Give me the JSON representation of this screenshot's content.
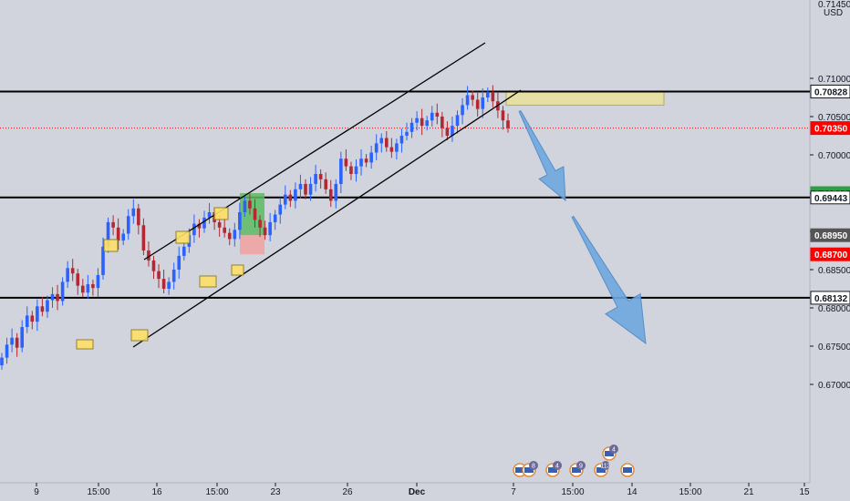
{
  "price_axis": {
    "currency": "USD",
    "ticks": [
      "0.71000",
      "0.70500",
      "0.70000",
      "0.69500",
      "0.69000",
      "0.68500",
      "0.68000",
      "0.67500",
      "0.67000"
    ],
    "top_partial": "0.71450"
  },
  "time_axis": {
    "ticks": [
      {
        "label": "9",
        "bold": false
      },
      {
        "label": "15:00",
        "bold": false
      },
      {
        "label": "16",
        "bold": false
      },
      {
        "label": "15:00",
        "bold": false
      },
      {
        "label": "23",
        "bold": false
      },
      {
        "label": "26",
        "bold": false
      },
      {
        "label": "Dec",
        "bold": true
      },
      {
        "label": "7",
        "bold": false
      },
      {
        "label": "15:00",
        "bold": false
      },
      {
        "label": "14",
        "bold": false
      },
      {
        "label": "15:00",
        "bold": false
      },
      {
        "label": "21",
        "bold": false
      },
      {
        "label": "15",
        "bold": false
      }
    ]
  },
  "price_tags": [
    {
      "value": "0.70828",
      "bg": "#ffffff",
      "fg": "#131722"
    },
    {
      "value": "0.70350",
      "bg": "#ff0000",
      "fg": "#ffffff"
    },
    {
      "value": "0.69500",
      "bg": "#2f9e44",
      "fg": "#ffffff"
    },
    {
      "value": "0.69443",
      "bg": "#ffffff",
      "fg": "#131722"
    },
    {
      "value": "0.68950",
      "bg": "#555555",
      "fg": "#ffffff"
    },
    {
      "value": "0.68700",
      "bg": "#ff0000",
      "fg": "#ffffff"
    },
    {
      "value": "0.68132",
      "bg": "#ffffff",
      "fg": "#131722"
    }
  ],
  "event_badges": [
    "",
    "8",
    "4",
    "9",
    "113",
    "",
    "4"
  ],
  "colors": {
    "background": "#d1d4dc",
    "bull": "#2962ff",
    "bear": "#b22833",
    "lines": "#000000",
    "current_price_line": "#ff0000",
    "supply_zone": "#e8e0a0",
    "arrow": "#6fa8e0",
    "highlight_box": "#ffe066",
    "target_box": "#5dbb63",
    "stop_box": "#f2a0a0"
  },
  "chart_data": {
    "type": "candlestick",
    "symbol_quote": "USD",
    "ylim": [
      0.6695,
      0.7145
    ],
    "x_ticks": [
      "9",
      "15:00",
      "16",
      "15:00",
      "23",
      "26",
      "Dec",
      "7",
      "15:00",
      "14",
      "15:00",
      "21",
      "15"
    ],
    "horizontal_levels": [
      0.70828,
      0.69443,
      0.68132
    ],
    "current_price": 0.7035,
    "position": {
      "entry": 0.6895,
      "target": 0.695,
      "stop": 0.687
    },
    "supply_zone": [
      0.7065,
      0.70828
    ],
    "channel": {
      "upper": [
        [
          0.6897,
          0.7112
        ]
      ],
      "lower": [
        [
          0.6812,
          0.7065
        ]
      ]
    },
    "candles_close": [
      0.6735,
      0.6752,
      0.6761,
      0.6748,
      0.6775,
      0.679,
      0.6782,
      0.6802,
      0.6795,
      0.681,
      0.6818,
      0.6809,
      0.6834,
      0.6852,
      0.6845,
      0.6829,
      0.682,
      0.6831,
      0.6826,
      0.6843,
      0.688,
      0.6912,
      0.6905,
      0.6888,
      0.6897,
      0.692,
      0.693,
      0.6908,
      0.6875,
      0.6862,
      0.6848,
      0.6838,
      0.6825,
      0.6834,
      0.685,
      0.6868,
      0.688,
      0.6895,
      0.691,
      0.6904,
      0.6918,
      0.6925,
      0.6912,
      0.6905,
      0.6898,
      0.689,
      0.6902,
      0.6925,
      0.694,
      0.693,
      0.6915,
      0.6905,
      0.6895,
      0.6912,
      0.6922,
      0.6935,
      0.6948,
      0.694,
      0.6955,
      0.6962,
      0.6948,
      0.6962,
      0.6975,
      0.6968,
      0.6955,
      0.694,
      0.6962,
      0.6995,
      0.6985,
      0.6975,
      0.6985,
      0.6995,
      0.699,
      0.7003,
      0.7015,
      0.7022,
      0.701,
      0.7004,
      0.7015,
      0.7025,
      0.703,
      0.7042,
      0.7048,
      0.7038,
      0.7045,
      0.7055,
      0.705,
      0.7035,
      0.7025,
      0.7038,
      0.7052,
      0.7065,
      0.7078,
      0.7072,
      0.706,
      0.7075,
      0.7082,
      0.707,
      0.7058,
      0.7045,
      0.7035
    ]
  }
}
